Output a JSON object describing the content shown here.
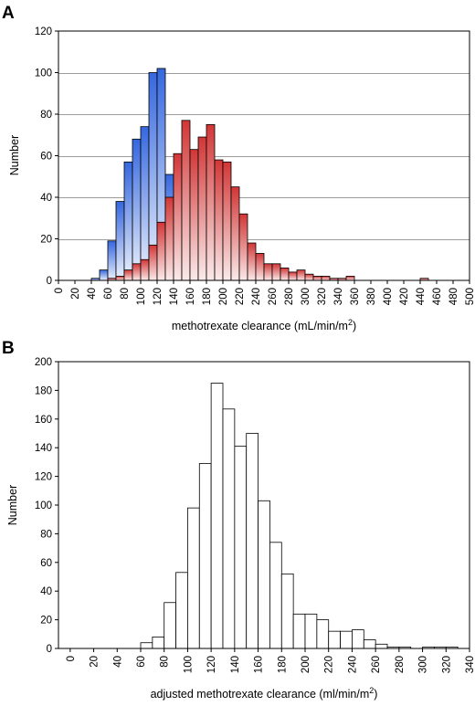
{
  "chart_data": [
    {
      "type": "bar",
      "panel_label": "A",
      "xlabel": "methotrexate clearance (mL/min/m",
      "xlabel_sup": "2",
      "xlabel_close": ")",
      "ylabel": "Number",
      "ylim": [
        0,
        120
      ],
      "yticks": [
        0,
        20,
        40,
        60,
        80,
        100,
        120
      ],
      "xlim": [
        0,
        500
      ],
      "xticks": [
        0,
        20,
        40,
        60,
        80,
        100,
        120,
        140,
        160,
        180,
        200,
        220,
        240,
        260,
        280,
        300,
        320,
        340,
        360,
        380,
        400,
        420,
        440,
        460,
        480,
        500
      ],
      "bin_width": 10,
      "grid": true,
      "legend": "none",
      "series": [
        {
          "color": "#3b6fe0",
          "bins": [
            {
              "x0": 40,
              "x1": 50,
              "value": 1
            },
            {
              "x0": 50,
              "x1": 60,
              "value": 5
            },
            {
              "x0": 60,
              "x1": 70,
              "value": 19
            },
            {
              "x0": 70,
              "x1": 80,
              "value": 38
            },
            {
              "x0": 80,
              "x1": 90,
              "value": 57
            },
            {
              "x0": 90,
              "x1": 100,
              "value": 68
            },
            {
              "x0": 100,
              "x1": 110,
              "value": 74
            },
            {
              "x0": 110,
              "x1": 120,
              "value": 100
            },
            {
              "x0": 120,
              "x1": 130,
              "value": 102
            },
            {
              "x0": 130,
              "x1": 140,
              "value": 51
            }
          ]
        },
        {
          "color": "#d43a3a",
          "bins": [
            {
              "x0": 60,
              "x1": 70,
              "value": 1
            },
            {
              "x0": 70,
              "x1": 80,
              "value": 2
            },
            {
              "x0": 80,
              "x1": 90,
              "value": 5
            },
            {
              "x0": 90,
              "x1": 100,
              "value": 8
            },
            {
              "x0": 100,
              "x1": 110,
              "value": 10
            },
            {
              "x0": 110,
              "x1": 120,
              "value": 17
            },
            {
              "x0": 120,
              "x1": 130,
              "value": 28
            },
            {
              "x0": 130,
              "x1": 140,
              "value": 40
            },
            {
              "x0": 140,
              "x1": 150,
              "value": 61
            },
            {
              "x0": 150,
              "x1": 160,
              "value": 77
            },
            {
              "x0": 160,
              "x1": 170,
              "value": 63
            },
            {
              "x0": 170,
              "x1": 180,
              "value": 69
            },
            {
              "x0": 180,
              "x1": 190,
              "value": 75
            },
            {
              "x0": 190,
              "x1": 200,
              "value": 58
            },
            {
              "x0": 200,
              "x1": 210,
              "value": 57
            },
            {
              "x0": 210,
              "x1": 220,
              "value": 45
            },
            {
              "x0": 220,
              "x1": 230,
              "value": 32
            },
            {
              "x0": 230,
              "x1": 240,
              "value": 18
            },
            {
              "x0": 240,
              "x1": 250,
              "value": 13
            },
            {
              "x0": 250,
              "x1": 260,
              "value": 8
            },
            {
              "x0": 260,
              "x1": 270,
              "value": 8
            },
            {
              "x0": 270,
              "x1": 280,
              "value": 6
            },
            {
              "x0": 280,
              "x1": 290,
              "value": 4
            },
            {
              "x0": 290,
              "x1": 300,
              "value": 5
            },
            {
              "x0": 300,
              "x1": 310,
              "value": 3
            },
            {
              "x0": 310,
              "x1": 320,
              "value": 2
            },
            {
              "x0": 320,
              "x1": 330,
              "value": 2
            },
            {
              "x0": 330,
              "x1": 340,
              "value": 1
            },
            {
              "x0": 340,
              "x1": 350,
              "value": 1
            },
            {
              "x0": 350,
              "x1": 360,
              "value": 2
            },
            {
              "x0": 360,
              "x1": 370,
              "value": 0
            },
            {
              "x0": 370,
              "x1": 380,
              "value": 0
            },
            {
              "x0": 380,
              "x1": 390,
              "value": 0
            },
            {
              "x0": 390,
              "x1": 400,
              "value": 0
            },
            {
              "x0": 400,
              "x1": 410,
              "value": 0
            },
            {
              "x0": 410,
              "x1": 420,
              "value": 0
            },
            {
              "x0": 420,
              "x1": 430,
              "value": 0
            },
            {
              "x0": 430,
              "x1": 440,
              "value": 0
            },
            {
              "x0": 440,
              "x1": 450,
              "value": 1
            }
          ]
        }
      ]
    },
    {
      "type": "bar",
      "panel_label": "B",
      "xlabel": "adjusted methotrexate clearance (ml/min/m",
      "xlabel_sup": "2",
      "xlabel_close": ")",
      "ylabel": "Number",
      "ylim": [
        0,
        200
      ],
      "yticks": [
        0,
        20,
        40,
        60,
        80,
        100,
        120,
        140,
        160,
        180,
        200
      ],
      "xlim": [
        -10,
        340
      ],
      "xticks": [
        0,
        20,
        40,
        60,
        80,
        100,
        120,
        140,
        160,
        180,
        200,
        220,
        240,
        260,
        280,
        300,
        320,
        340
      ],
      "bin_width": 10,
      "grid": false,
      "legend": "none",
      "series": [
        {
          "color": "#ffffff",
          "bins": [
            {
              "x0": 60,
              "x1": 70,
              "value": 4
            },
            {
              "x0": 70,
              "x1": 80,
              "value": 8
            },
            {
              "x0": 80,
              "x1": 90,
              "value": 32
            },
            {
              "x0": 90,
              "x1": 100,
              "value": 53
            },
            {
              "x0": 100,
              "x1": 110,
              "value": 98
            },
            {
              "x0": 110,
              "x1": 120,
              "value": 129
            },
            {
              "x0": 120,
              "x1": 130,
              "value": 185
            },
            {
              "x0": 130,
              "x1": 140,
              "value": 167
            },
            {
              "x0": 140,
              "x1": 150,
              "value": 141
            },
            {
              "x0": 150,
              "x1": 160,
              "value": 150
            },
            {
              "x0": 160,
              "x1": 170,
              "value": 103
            },
            {
              "x0": 170,
              "x1": 180,
              "value": 74
            },
            {
              "x0": 180,
              "x1": 190,
              "value": 52
            },
            {
              "x0": 190,
              "x1": 200,
              "value": 24
            },
            {
              "x0": 200,
              "x1": 210,
              "value": 24
            },
            {
              "x0": 210,
              "x1": 220,
              "value": 20
            },
            {
              "x0": 220,
              "x1": 230,
              "value": 12
            },
            {
              "x0": 230,
              "x1": 240,
              "value": 12
            },
            {
              "x0": 240,
              "x1": 250,
              "value": 13
            },
            {
              "x0": 250,
              "x1": 260,
              "value": 6
            },
            {
              "x0": 260,
              "x1": 270,
              "value": 3
            },
            {
              "x0": 270,
              "x1": 280,
              "value": 1
            },
            {
              "x0": 280,
              "x1": 290,
              "value": 1
            },
            {
              "x0": 290,
              "x1": 300,
              "value": 0
            },
            {
              "x0": 300,
              "x1": 310,
              "value": 1
            },
            {
              "x0": 310,
              "x1": 320,
              "value": 1
            },
            {
              "x0": 320,
              "x1": 330,
              "value": 1
            }
          ]
        }
      ]
    }
  ]
}
